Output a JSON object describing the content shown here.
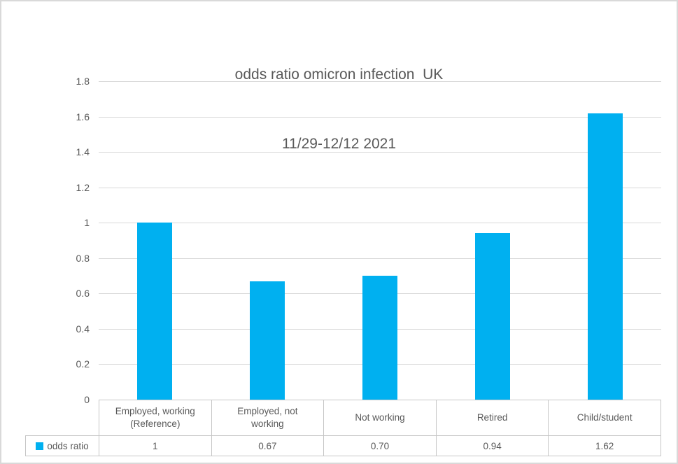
{
  "title": {
    "line1": "odds ratio omicron infection  UK",
    "line2": "11/29-12/12 2021"
  },
  "colors": {
    "bar": "#00b0f0",
    "text": "#595959",
    "grid": "#d9d9d9",
    "table_border": "#c6c6c6",
    "frame_border": "#d9d9d9"
  },
  "chart_data": {
    "type": "bar",
    "title": "odds ratio omicron infection  UK 11/29-12/12 2021",
    "categories": [
      "Employed, working (Reference)",
      "Employed, not working",
      "Not working",
      "Retired",
      "Child/student"
    ],
    "series": [
      {
        "name": "odds ratio",
        "values": [
          1,
          0.67,
          0.7,
          0.94,
          1.62
        ]
      }
    ],
    "display_values": [
      "1",
      "0.67",
      "0.70",
      "0.94",
      "1.62"
    ],
    "xlabel": "",
    "ylabel": "",
    "ylim": [
      0,
      1.8
    ],
    "ytick_step": 0.2,
    "yticks": [
      "1.8",
      "1.6",
      "1.4",
      "1.2",
      "1",
      "0.8",
      "0.6",
      "0.4",
      "0.2",
      "0"
    ],
    "grid": true,
    "legend_position": "bottom-table-left"
  }
}
